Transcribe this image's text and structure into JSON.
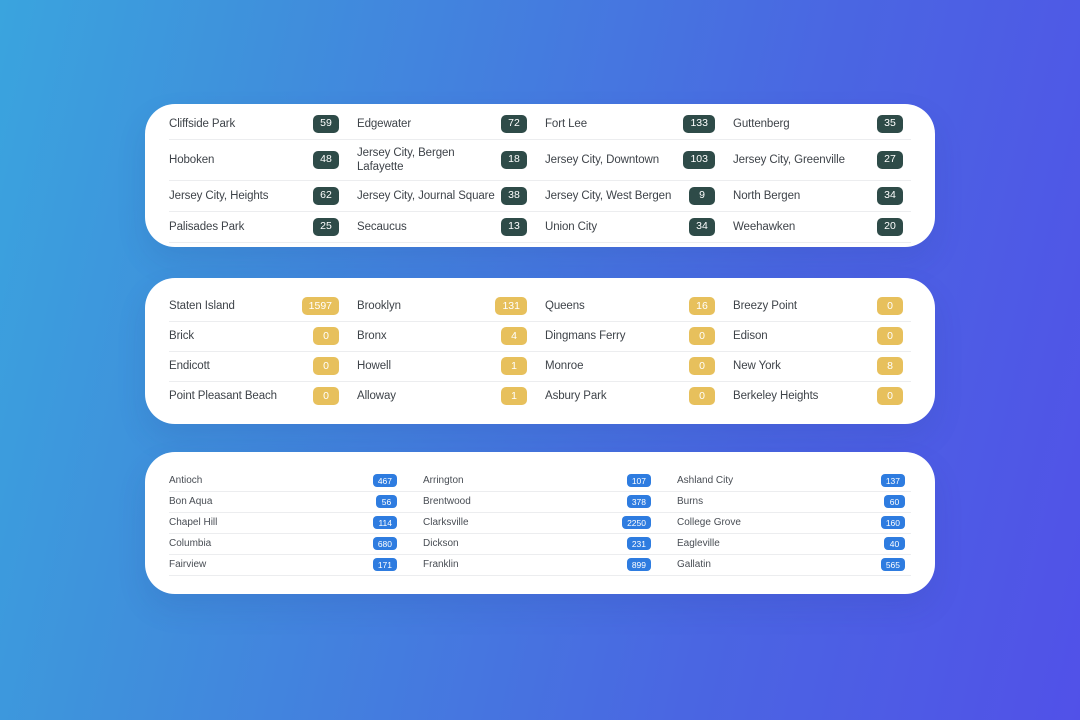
{
  "background": {
    "gradient_start": "#3AA4DE",
    "gradient_end": "#5151E8"
  },
  "cards": [
    {
      "id": "card-1",
      "columns": 4,
      "badge_color": "#2E4B48",
      "badge_text_color": "#FFFFFF",
      "divider_after_last_row": true,
      "rows": [
        [
          {
            "label": "Cliffside Park",
            "count": "59"
          },
          {
            "label": "Edgewater",
            "count": "72"
          },
          {
            "label": "Fort Lee",
            "count": "133"
          },
          {
            "label": "Guttenberg",
            "count": "35"
          }
        ],
        [
          {
            "label": "Hoboken",
            "count": "48"
          },
          {
            "label": "Jersey City, Bergen Lafayette",
            "count": "18"
          },
          {
            "label": "Jersey City, Downtown",
            "count": "103"
          },
          {
            "label": "Jersey City, Greenville",
            "count": "27"
          }
        ],
        [
          {
            "label": "Jersey City, Heights",
            "count": "62"
          },
          {
            "label": "Jersey City, Journal Square",
            "count": "38"
          },
          {
            "label": "Jersey City, West Bergen",
            "count": "9"
          },
          {
            "label": "North Bergen",
            "count": "34"
          }
        ],
        [
          {
            "label": "Palisades Park",
            "count": "25"
          },
          {
            "label": "Secaucus",
            "count": "13"
          },
          {
            "label": "Union City",
            "count": "34"
          },
          {
            "label": "Weehawken",
            "count": "20"
          }
        ]
      ]
    },
    {
      "id": "card-2",
      "columns": 4,
      "badge_color": "#E7C05C",
      "badge_text_color": "#FFFFFF",
      "divider_after_last_row": false,
      "rows": [
        [
          {
            "label": "Staten Island",
            "count": "1597"
          },
          {
            "label": "Brooklyn",
            "count": "131"
          },
          {
            "label": "Queens",
            "count": "16"
          },
          {
            "label": "Breezy Point",
            "count": "0"
          }
        ],
        [
          {
            "label": "Brick",
            "count": "0"
          },
          {
            "label": "Bronx",
            "count": "4"
          },
          {
            "label": "Dingmans Ferry",
            "count": "0"
          },
          {
            "label": "Edison",
            "count": "0"
          }
        ],
        [
          {
            "label": "Endicott",
            "count": "0"
          },
          {
            "label": "Howell",
            "count": "1"
          },
          {
            "label": "Monroe",
            "count": "0"
          },
          {
            "label": "New York",
            "count": "8"
          }
        ],
        [
          {
            "label": "Point Pleasant Beach",
            "count": "0"
          },
          {
            "label": "Alloway",
            "count": "1"
          },
          {
            "label": "Asbury Park",
            "count": "0"
          },
          {
            "label": "Berkeley Heights",
            "count": "0"
          }
        ]
      ]
    },
    {
      "id": "card-3",
      "columns": 3,
      "badge_color": "#2E7CE0",
      "badge_text_color": "#FFFFFF",
      "divider_after_last_row": true,
      "rows": [
        [
          {
            "label": "Antioch",
            "count": "467"
          },
          {
            "label": "Arrington",
            "count": "107"
          },
          {
            "label": "Ashland City",
            "count": "137"
          }
        ],
        [
          {
            "label": "Bon Aqua",
            "count": "56"
          },
          {
            "label": "Brentwood",
            "count": "378"
          },
          {
            "label": "Burns",
            "count": "60"
          }
        ],
        [
          {
            "label": "Chapel Hill",
            "count": "114"
          },
          {
            "label": "Clarksville",
            "count": "2250"
          },
          {
            "label": "College Grove",
            "count": "160"
          }
        ],
        [
          {
            "label": "Columbia",
            "count": "680"
          },
          {
            "label": "Dickson",
            "count": "231"
          },
          {
            "label": "Eagleville",
            "count": "40"
          }
        ],
        [
          {
            "label": "Fairview",
            "count": "171"
          },
          {
            "label": "Franklin",
            "count": "899"
          },
          {
            "label": "Gallatin",
            "count": "565"
          }
        ]
      ]
    }
  ]
}
